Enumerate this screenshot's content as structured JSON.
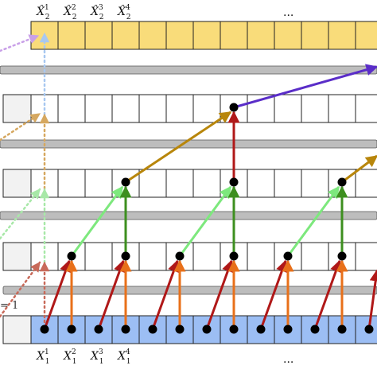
{
  "top_labels": [
    {
      "base": "X̂",
      "sub": "2",
      "sup": "1"
    },
    {
      "base": "X̂",
      "sub": "2",
      "sup": "2"
    },
    {
      "base": "X̂",
      "sub": "2",
      "sup": "3"
    },
    {
      "base": "X̂",
      "sub": "2",
      "sup": "4"
    }
  ],
  "top_ellipsis": "...",
  "bottom_labels": [
    {
      "base": "X",
      "sub": "1",
      "sup": "1"
    },
    {
      "base": "X",
      "sub": "1",
      "sup": "2"
    },
    {
      "base": "X",
      "sub": "1",
      "sup": "3"
    },
    {
      "base": "X",
      "sub": "1",
      "sup": "4"
    }
  ],
  "bottom_ellipsis": "...",
  "side_text": "= 1",
  "colors": {
    "top_row_fill": "#f9dc7a",
    "bottom_row_fill": "#9cbef4",
    "separator": "#bdbdbd",
    "red": "#b01818",
    "orange": "#e8701a",
    "light_green": "#7de87d",
    "dark_green": "#3d8f1f",
    "gold": "#b8860b",
    "purple": "#5a2dc8",
    "dotted_purple": "#c9a0e8",
    "dotted_blue": "#a8c8f0",
    "dotted_gold": "#d6a860",
    "dotted_green": "#a8e8a8",
    "dotted_red": "#c86a5a"
  }
}
